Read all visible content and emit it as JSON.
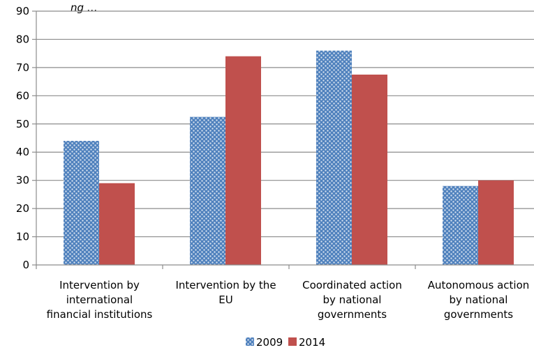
{
  "chart_data": {
    "type": "bar",
    "categories": [
      [
        "Intervention by",
        "international",
        "financial institutions"
      ],
      [
        "Intervention by the",
        "EU"
      ],
      [
        "Coordinated action",
        "by national",
        "governments"
      ],
      [
        "Autonomous action",
        "by national",
        "governments"
      ]
    ],
    "series": [
      {
        "name": "2009",
        "values": [
          44,
          52.5,
          76,
          28
        ],
        "color": "#4F81BD",
        "pattern": "dotted"
      },
      {
        "name": "2014",
        "values": [
          29,
          74,
          67.5,
          30
        ],
        "color": "#C0504D",
        "pattern": "solid"
      }
    ],
    "ylim": [
      0,
      90
    ],
    "yticks": [
      0,
      10,
      20,
      30,
      40,
      50,
      60,
      70,
      80,
      90
    ],
    "grid": true,
    "legend_position": "bottom",
    "top_fragment": "ng …"
  }
}
